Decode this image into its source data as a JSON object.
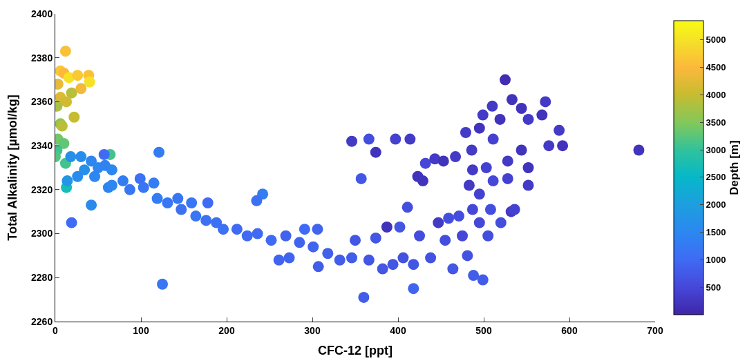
{
  "chart_data": {
    "type": "scatter",
    "xlabel": "CFC-12 [ppt]",
    "ylabel": "Total Alkalinity [µmol/kg]",
    "clabel": "Depth [m]",
    "marker": "circle",
    "x": [
      12,
      6,
      10,
      3,
      16,
      26,
      39,
      40,
      30,
      19,
      6,
      13,
      2,
      22,
      6,
      8,
      3,
      10,
      2,
      0,
      12,
      13,
      64,
      57,
      121,
      18,
      30,
      42,
      50,
      58,
      66,
      34,
      26,
      46,
      62,
      42,
      19,
      66,
      14,
      79,
      87,
      99,
      103,
      115,
      119,
      131,
      143,
      147,
      159,
      164,
      176,
      178,
      188,
      196,
      212,
      224,
      236,
      242,
      235,
      252,
      261,
      273,
      269,
      285,
      291,
      306,
      301,
      318,
      332,
      307,
      346,
      350,
      366,
      374,
      382,
      394,
      402,
      406,
      425,
      418,
      438,
      455,
      464,
      481,
      488,
      499,
      360,
      418,
      125,
      346,
      366,
      397,
      414,
      374,
      357,
      423,
      429,
      432,
      443,
      453,
      467,
      411,
      387,
      525,
      533,
      510,
      544,
      568,
      572,
      499,
      519,
      552,
      479,
      495,
      588,
      592,
      576,
      681,
      544,
      511,
      486,
      528,
      552,
      503,
      487,
      483,
      511,
      528,
      552,
      495,
      508,
      532,
      536,
      487,
      471,
      495,
      459,
      520,
      505,
      447,
      475
    ],
    "values": [
      2383,
      2374,
      2373,
      2368,
      2371,
      2372,
      2372,
      2369,
      2366,
      2364,
      2362,
      2360,
      2358,
      2353,
      2350,
      2349,
      2343,
      2341,
      2338,
      2335,
      2332,
      2321,
      2336,
      2336,
      2337,
      2335,
      2335,
      2333,
      2330,
      2331,
      2329,
      2329,
      2326,
      2326,
      2321,
      2313,
      2305,
      2322,
      2324,
      2324,
      2320,
      2325,
      2321,
      2323,
      2316,
      2314,
      2316,
      2311,
      2314,
      2308,
      2306,
      2314,
      2305,
      2302,
      2302,
      2299,
      2300,
      2318,
      2315,
      2297,
      2288,
      2289,
      2299,
      2296,
      2302,
      2302,
      2294,
      2291,
      2288,
      2285,
      2289,
      2297,
      2288,
      2298,
      2284,
      2286,
      2303,
      2289,
      2299,
      2286,
      2289,
      2297,
      2284,
      2290,
      2281,
      2279,
      2271,
      2275,
      2277,
      2342,
      2343,
      2343,
      2343,
      2337,
      2325,
      2326,
      2324,
      2332,
      2334,
      2333,
      2335,
      2312,
      2303,
      2370,
      2361,
      2358,
      2357,
      2354,
      2360,
      2354,
      2352,
      2352,
      2346,
      2348,
      2347,
      2340,
      2340,
      2338,
      2338,
      2343,
      2338,
      2333,
      2330,
      2330,
      2329,
      2322,
      2324,
      2325,
      2322,
      2318,
      2311,
      2310,
      2311,
      2311,
      2308,
      2305,
      2307,
      2305,
      2299,
      2305,
      2299
    ],
    "cvalues": [
      4600,
      4700,
      4500,
      4300,
      5000,
      4700,
      4600,
      5000,
      4400,
      3900,
      4200,
      4100,
      3800,
      4000,
      3600,
      3900,
      3400,
      3300,
      3100,
      3200,
      3100,
      2700,
      3100,
      1000,
      1300,
      1700,
      1600,
      1500,
      1500,
      1400,
      1500,
      1700,
      1600,
      1500,
      1400,
      1600,
      1000,
      1500,
      1800,
      1300,
      1200,
      1100,
      1200,
      1300,
      1300,
      1200,
      1200,
      1100,
      1200,
      1200,
      1100,
      1000,
      1100,
      1100,
      1000,
      1000,
      1000,
      1300,
      1100,
      1000,
      900,
      900,
      900,
      900,
      1000,
      900,
      900,
      850,
      800,
      800,
      800,
      700,
      700,
      700,
      700,
      700,
      700,
      650,
      600,
      700,
      650,
      600,
      700,
      650,
      800,
      800,
      800,
      900,
      1200,
      300,
      600,
      400,
      300,
      200,
      700,
      200,
      200,
      500,
      300,
      200,
      300,
      600,
      200,
      100,
      200,
      300,
      200,
      200,
      300,
      300,
      200,
      300,
      300,
      200,
      300,
      200,
      300,
      200,
      200,
      400,
      300,
      300,
      200,
      400,
      300,
      300,
      500,
      400,
      300,
      400,
      600,
      300,
      400,
      500,
      600,
      500,
      600,
      600,
      600,
      300,
      500
    ],
    "xlim": [
      0,
      700
    ],
    "xticks": [
      0,
      100,
      200,
      300,
      400,
      500,
      600,
      700
    ],
    "ylim": [
      2260,
      2400
    ],
    "yticks": [
      2260,
      2280,
      2300,
      2320,
      2340,
      2360,
      2380,
      2400
    ],
    "clim": [
      0,
      5350
    ],
    "cticks": [
      500,
      1000,
      1500,
      2000,
      2500,
      3000,
      3500,
      4000,
      4500,
      5000
    ]
  }
}
